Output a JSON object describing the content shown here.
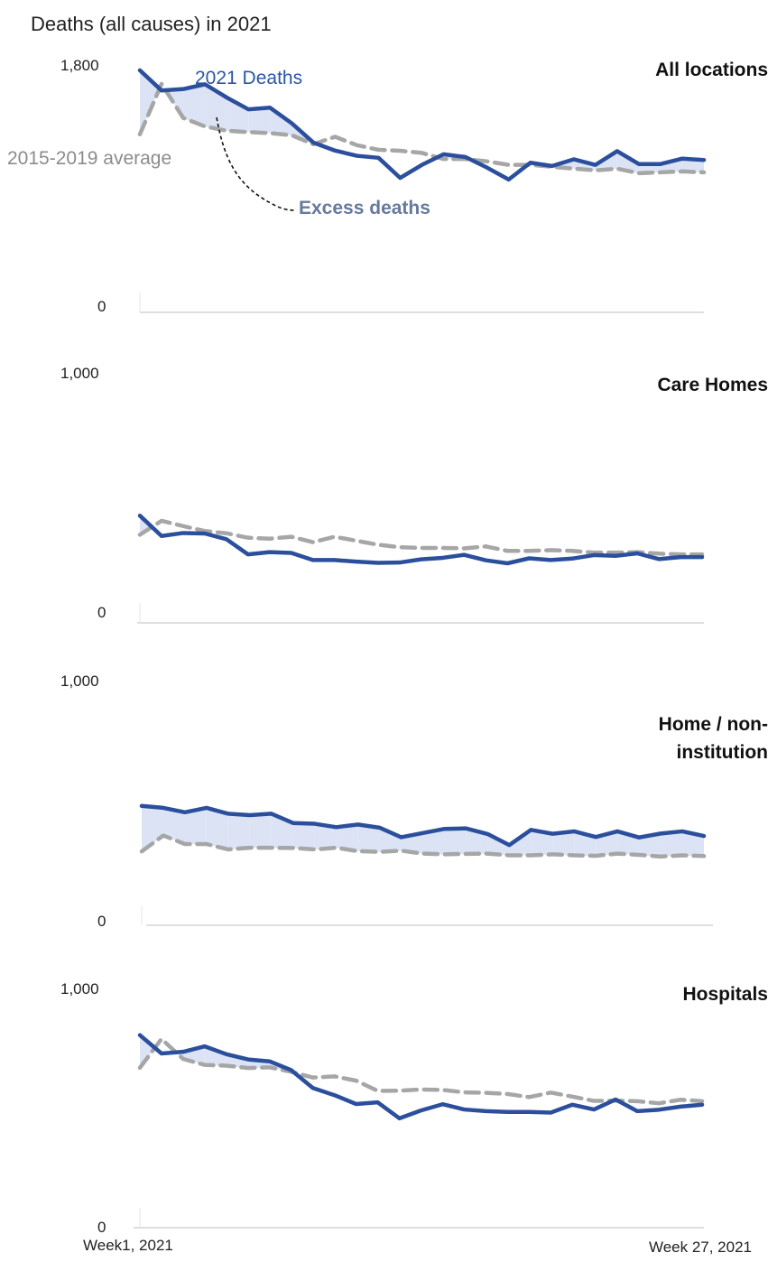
{
  "title": "Deaths (all causes) in 2021",
  "x_start_label": "Week1, 2021",
  "x_end_label": "Week 27, 2021",
  "annotations": {
    "deaths_2021": "2021 Deaths",
    "average": "2015-2019 average",
    "excess": "Excess deaths"
  },
  "colors": {
    "deaths_line": "#2b4f9c",
    "average_line": "#a6a6a6",
    "excess_fill": "#dbe3f5",
    "axis": "#bfbfbf"
  },
  "chart_data": [
    {
      "type": "line",
      "title": "All locations",
      "ylim": [
        0,
        1800
      ],
      "y_ticks": [
        "0",
        "1,800"
      ],
      "x": [
        1,
        2,
        3,
        4,
        5,
        6,
        7,
        8,
        9,
        10,
        11,
        12,
        13,
        14,
        15,
        16,
        17,
        18,
        19,
        20,
        21,
        22,
        23,
        24,
        25,
        26,
        27
      ],
      "series": [
        {
          "name": "2021 Deaths",
          "values": [
            1781,
            1632,
            1643,
            1678,
            1581,
            1494,
            1506,
            1391,
            1249,
            1190,
            1152,
            1137,
            989,
            1085,
            1163,
            1143,
            1065,
            977,
            1101,
            1077,
            1126,
            1085,
            1186,
            1091,
            1091,
            1131,
            1121
          ]
        },
        {
          "name": "2015-2019 average",
          "values": [
            1310,
            1681,
            1430,
            1368,
            1336,
            1326,
            1319,
            1303,
            1237,
            1292,
            1230,
            1196,
            1189,
            1173,
            1128,
            1128,
            1111,
            1085,
            1085,
            1071,
            1057,
            1045,
            1057,
            1024,
            1030,
            1037,
            1030
          ]
        }
      ]
    },
    {
      "type": "line",
      "title": "Care Homes",
      "ylim": [
        0,
        1000
      ],
      "y_ticks": [
        "0",
        "1,000"
      ],
      "x": [
        1,
        2,
        3,
        4,
        5,
        6,
        7,
        8,
        9,
        10,
        11,
        12,
        13,
        14,
        15,
        16,
        17,
        18,
        19,
        20,
        21,
        22,
        23,
        24,
        25,
        26,
        27
      ],
      "series": [
        {
          "name": "2021 Deaths",
          "values": [
            432,
            350,
            362,
            360,
            337,
            276,
            285,
            282,
            253,
            253,
            247,
            242,
            243,
            256,
            262,
            274,
            252,
            240,
            260,
            253,
            259,
            273,
            270,
            280,
            257,
            265,
            265
          ]
        },
        {
          "name": "2015-2019 average",
          "values": [
            355,
            411,
            390,
            370,
            361,
            343,
            339,
            347,
            325,
            347,
            331,
            315,
            305,
            302,
            302,
            300,
            308,
            290,
            290,
            293,
            290,
            283,
            283,
            285,
            279,
            276,
            276
          ]
        }
      ]
    },
    {
      "type": "line",
      "title": "Home / non-institution",
      "ylim": [
        0,
        1000
      ],
      "y_ticks": [
        "0",
        "1,000"
      ],
      "x": [
        1,
        2,
        3,
        4,
        5,
        6,
        7,
        8,
        9,
        10,
        11,
        12,
        13,
        14,
        15,
        16,
        17,
        18,
        19,
        20,
        21,
        22,
        23,
        24,
        25,
        26,
        27
      ],
      "series": [
        {
          "name": "2021 Deaths",
          "values": [
            488,
            480,
            462,
            480,
            456,
            450,
            456,
            418,
            415,
            401,
            412,
            399,
            360,
            377,
            394,
            396,
            373,
            328,
            390,
            374,
            384,
            361,
            384,
            359,
            375,
            384,
            365
          ]
        },
        {
          "name": "2015-2019 average",
          "values": [
            302,
            367,
            332,
            332,
            310,
            317,
            317,
            316,
            310,
            317,
            303,
            300,
            305,
            293,
            290,
            292,
            293,
            286,
            286,
            290,
            286,
            284,
            293,
            288,
            281,
            286,
            283
          ]
        }
      ]
    },
    {
      "type": "line",
      "title": "Hospitals",
      "ylim": [
        0,
        1000
      ],
      "y_ticks": [
        "0",
        "1,000"
      ],
      "x": [
        1,
        2,
        3,
        4,
        5,
        6,
        7,
        8,
        9,
        10,
        11,
        12,
        13,
        14,
        15,
        16,
        17,
        18,
        19,
        20,
        21,
        22,
        23,
        24,
        25,
        26,
        27
      ],
      "series": [
        {
          "name": "2021 Deaths",
          "values": [
            808,
            731,
            738,
            761,
            728,
            706,
            698,
            661,
            586,
            556,
            519,
            526,
            459,
            492,
            518,
            496,
            489,
            486,
            486,
            483,
            516,
            496,
            538,
            489,
            495,
            508,
            516
          ]
        },
        {
          "name": "2015-2019 average",
          "values": [
            671,
            792,
            708,
            683,
            680,
            670,
            673,
            654,
            630,
            635,
            617,
            574,
            575,
            580,
            578,
            568,
            566,
            561,
            548,
            567,
            550,
            532,
            533,
            531,
            522,
            537,
            531
          ]
        }
      ]
    }
  ]
}
